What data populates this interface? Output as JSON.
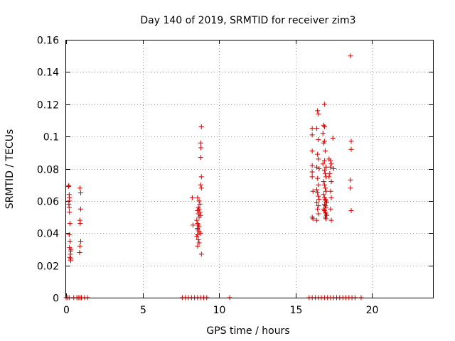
{
  "chart_data": {
    "type": "scatter",
    "title": "Day 140 of 2019, SRMTID for receiver zim3",
    "xlabel": "GPS time / hours",
    "ylabel": "SRMTID / TECUs",
    "xlim": [
      0,
      24
    ],
    "ylim": [
      0,
      0.16
    ],
    "xticks": [
      "0",
      "5",
      "10",
      "15",
      "20"
    ],
    "xtick_values": [
      0,
      5,
      10,
      15,
      20
    ],
    "yticks": [
      "0",
      "0.02",
      "0.04",
      "0.06",
      "0.08",
      "0.1",
      "0.12",
      "0.14",
      "0.16"
    ],
    "ytick_values": [
      0,
      0.02,
      0.04,
      0.06,
      0.08,
      0.1,
      0.12,
      0.14,
      0.16
    ],
    "grid": true,
    "marker": "+",
    "color": "#cc0000",
    "series": [
      {
        "name": "SRMTID",
        "points": [
          [
            0.15,
            0.069
          ],
          [
            0.18,
            0.0695
          ],
          [
            0.2,
            0.064
          ],
          [
            0.22,
            0.062
          ],
          [
            0.2,
            0.06
          ],
          [
            0.18,
            0.058
          ],
          [
            0.2,
            0.056
          ],
          [
            0.22,
            0.053
          ],
          [
            0.25,
            0.046
          ],
          [
            0.2,
            0.039
          ],
          [
            0.25,
            0.035
          ],
          [
            0.22,
            0.031
          ],
          [
            0.3,
            0.029
          ],
          [
            0.28,
            0.027
          ],
          [
            0.25,
            0.025
          ],
          [
            0.3,
            0.024
          ],
          [
            0.3,
            0.023
          ],
          [
            0.32,
            0.03
          ],
          [
            0.9,
            0.068
          ],
          [
            0.95,
            0.065
          ],
          [
            0.95,
            0.055
          ],
          [
            0.9,
            0.048
          ],
          [
            0.92,
            0.046
          ],
          [
            0.95,
            0.035
          ],
          [
            0.9,
            0.032
          ],
          [
            0.88,
            0.028
          ],
          [
            8.25,
            0.062
          ],
          [
            8.3,
            0.045
          ],
          [
            8.85,
            0.106
          ],
          [
            8.8,
            0.096
          ],
          [
            8.82,
            0.093
          ],
          [
            8.8,
            0.087
          ],
          [
            8.85,
            0.075
          ],
          [
            8.8,
            0.07
          ],
          [
            8.85,
            0.068
          ],
          [
            8.6,
            0.062
          ],
          [
            8.7,
            0.06
          ],
          [
            8.75,
            0.058
          ],
          [
            8.65,
            0.056
          ],
          [
            8.7,
            0.055
          ],
          [
            8.6,
            0.054
          ],
          [
            8.75,
            0.053
          ],
          [
            8.65,
            0.052
          ],
          [
            8.8,
            0.051
          ],
          [
            8.7,
            0.05
          ],
          [
            8.55,
            0.048
          ],
          [
            8.6,
            0.046
          ],
          [
            8.65,
            0.045
          ],
          [
            8.7,
            0.044
          ],
          [
            8.6,
            0.043
          ],
          [
            8.62,
            0.042
          ],
          [
            8.7,
            0.041
          ],
          [
            8.8,
            0.04
          ],
          [
            8.6,
            0.039
          ],
          [
            8.55,
            0.038
          ],
          [
            8.65,
            0.036
          ],
          [
            8.7,
            0.034
          ],
          [
            8.6,
            0.032
          ],
          [
            8.85,
            0.027
          ],
          [
            16.1,
            0.105
          ],
          [
            16.1,
            0.101
          ],
          [
            16.1,
            0.091
          ],
          [
            16.1,
            0.082
          ],
          [
            16.1,
            0.078
          ],
          [
            16.1,
            0.075
          ],
          [
            16.15,
            0.066
          ],
          [
            16.1,
            0.05
          ],
          [
            16.15,
            0.049
          ],
          [
            16.5,
            0.114
          ],
          [
            16.45,
            0.116
          ],
          [
            16.4,
            0.105
          ],
          [
            16.5,
            0.098
          ],
          [
            16.45,
            0.089
          ],
          [
            16.5,
            0.086
          ],
          [
            16.4,
            0.081
          ],
          [
            16.55,
            0.08
          ],
          [
            16.45,
            0.074
          ],
          [
            16.5,
            0.07
          ],
          [
            16.4,
            0.067
          ],
          [
            16.45,
            0.065
          ],
          [
            16.5,
            0.063
          ],
          [
            16.55,
            0.061
          ],
          [
            16.4,
            0.059
          ],
          [
            16.5,
            0.057
          ],
          [
            16.45,
            0.055
          ],
          [
            16.5,
            0.052
          ],
          [
            16.4,
            0.048
          ],
          [
            16.9,
            0.12
          ],
          [
            16.85,
            0.107
          ],
          [
            16.9,
            0.106
          ],
          [
            16.8,
            0.102
          ],
          [
            16.9,
            0.097
          ],
          [
            16.85,
            0.096
          ],
          [
            16.95,
            0.091
          ],
          [
            16.9,
            0.085
          ],
          [
            16.8,
            0.083
          ],
          [
            17.0,
            0.081
          ],
          [
            16.9,
            0.079
          ],
          [
            16.95,
            0.077
          ],
          [
            17.0,
            0.075
          ],
          [
            16.85,
            0.072
          ],
          [
            16.9,
            0.07
          ],
          [
            16.95,
            0.068
          ],
          [
            17.0,
            0.066
          ],
          [
            16.85,
            0.064
          ],
          [
            16.9,
            0.062
          ],
          [
            16.95,
            0.061
          ],
          [
            17.0,
            0.06
          ],
          [
            17.05,
            0.059
          ],
          [
            16.9,
            0.058
          ],
          [
            16.95,
            0.057
          ],
          [
            17.0,
            0.056
          ],
          [
            16.85,
            0.055
          ],
          [
            16.9,
            0.054
          ],
          [
            16.95,
            0.053
          ],
          [
            17.0,
            0.052
          ],
          [
            17.05,
            0.051
          ],
          [
            16.95,
            0.05
          ],
          [
            17.0,
            0.049
          ],
          [
            17.3,
            0.085
          ],
          [
            17.35,
            0.083
          ],
          [
            17.3,
            0.081
          ],
          [
            17.25,
            0.077
          ],
          [
            17.35,
            0.072
          ],
          [
            17.3,
            0.066
          ],
          [
            17.35,
            0.062
          ],
          [
            17.3,
            0.055
          ],
          [
            17.35,
            0.048
          ],
          [
            17.45,
            0.099
          ],
          [
            17.5,
            0.08
          ],
          [
            17.2,
            0.086
          ],
          [
            17.2,
            0.075
          ],
          [
            18.6,
            0.15
          ],
          [
            18.65,
            0.097
          ],
          [
            18.65,
            0.092
          ],
          [
            18.6,
            0.073
          ],
          [
            18.6,
            0.068
          ],
          [
            18.65,
            0.054
          ],
          [
            0.0,
            0
          ],
          [
            0.1,
            0
          ],
          [
            0.2,
            0
          ],
          [
            0.5,
            0
          ],
          [
            0.7,
            0
          ],
          [
            0.8,
            0
          ],
          [
            0.9,
            0
          ],
          [
            1.0,
            0
          ],
          [
            1.2,
            0
          ],
          [
            1.4,
            0
          ],
          [
            7.6,
            0
          ],
          [
            7.8,
            0
          ],
          [
            8.0,
            0
          ],
          [
            8.2,
            0
          ],
          [
            8.4,
            0
          ],
          [
            8.6,
            0
          ],
          [
            8.8,
            0
          ],
          [
            9.0,
            0
          ],
          [
            9.2,
            0
          ],
          [
            10.7,
            0
          ],
          [
            15.9,
            0
          ],
          [
            16.1,
            0
          ],
          [
            16.3,
            0
          ],
          [
            16.5,
            0
          ],
          [
            16.7,
            0
          ],
          [
            16.9,
            0
          ],
          [
            17.1,
            0
          ],
          [
            17.3,
            0
          ],
          [
            17.5,
            0
          ],
          [
            17.7,
            0
          ],
          [
            17.9,
            0
          ],
          [
            18.1,
            0
          ],
          [
            18.3,
            0
          ],
          [
            18.5,
            0
          ],
          [
            18.7,
            0
          ],
          [
            18.9,
            0
          ],
          [
            19.3,
            0
          ]
        ]
      }
    ]
  }
}
